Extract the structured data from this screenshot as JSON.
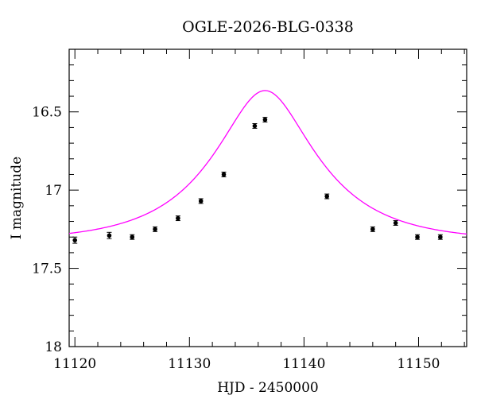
{
  "chart_data": {
    "type": "scatter",
    "title": "OGLE-2026-BLG-0338",
    "xlabel": "HJD - 2450000",
    "ylabel": "I magnitude",
    "xlim": [
      11119.5,
      11154.2
    ],
    "ylim": [
      18.0,
      16.1
    ],
    "y_inverted": true,
    "grid": false,
    "x_major_ticks": [
      11120,
      11130,
      11140,
      11150
    ],
    "x_tick_labels": [
      "11120",
      "11130",
      "11140",
      "11150"
    ],
    "y_major_ticks": [
      16.5,
      17.0,
      17.5,
      18.0
    ],
    "y_tick_labels": [
      "16.5",
      "17",
      "17.5",
      "18"
    ],
    "series": [
      {
        "kind": "points_with_errorbars",
        "color": "#000000",
        "x": [
          11120.0,
          11123.0,
          11125.0,
          11127.0,
          11129.0,
          11131.0,
          11133.0,
          11135.7,
          11136.6,
          11142.0,
          11146.0,
          11148.0,
          11149.9,
          11151.9
        ],
        "y": [
          17.32,
          17.29,
          17.3,
          17.25,
          17.18,
          17.07,
          16.9,
          16.59,
          16.55,
          17.04,
          17.25,
          17.21,
          17.3,
          17.3
        ],
        "yerr": [
          0.02,
          0.02,
          0.015,
          0.015,
          0.015,
          0.015,
          0.015,
          0.015,
          0.015,
          0.015,
          0.015,
          0.015,
          0.015,
          0.015
        ]
      },
      {
        "kind": "model_curve",
        "color": "#ff00ff",
        "baseline_mag": 17.33,
        "t0": 11136.6,
        "u0": 0.44,
        "tE": 8.2
      }
    ]
  }
}
